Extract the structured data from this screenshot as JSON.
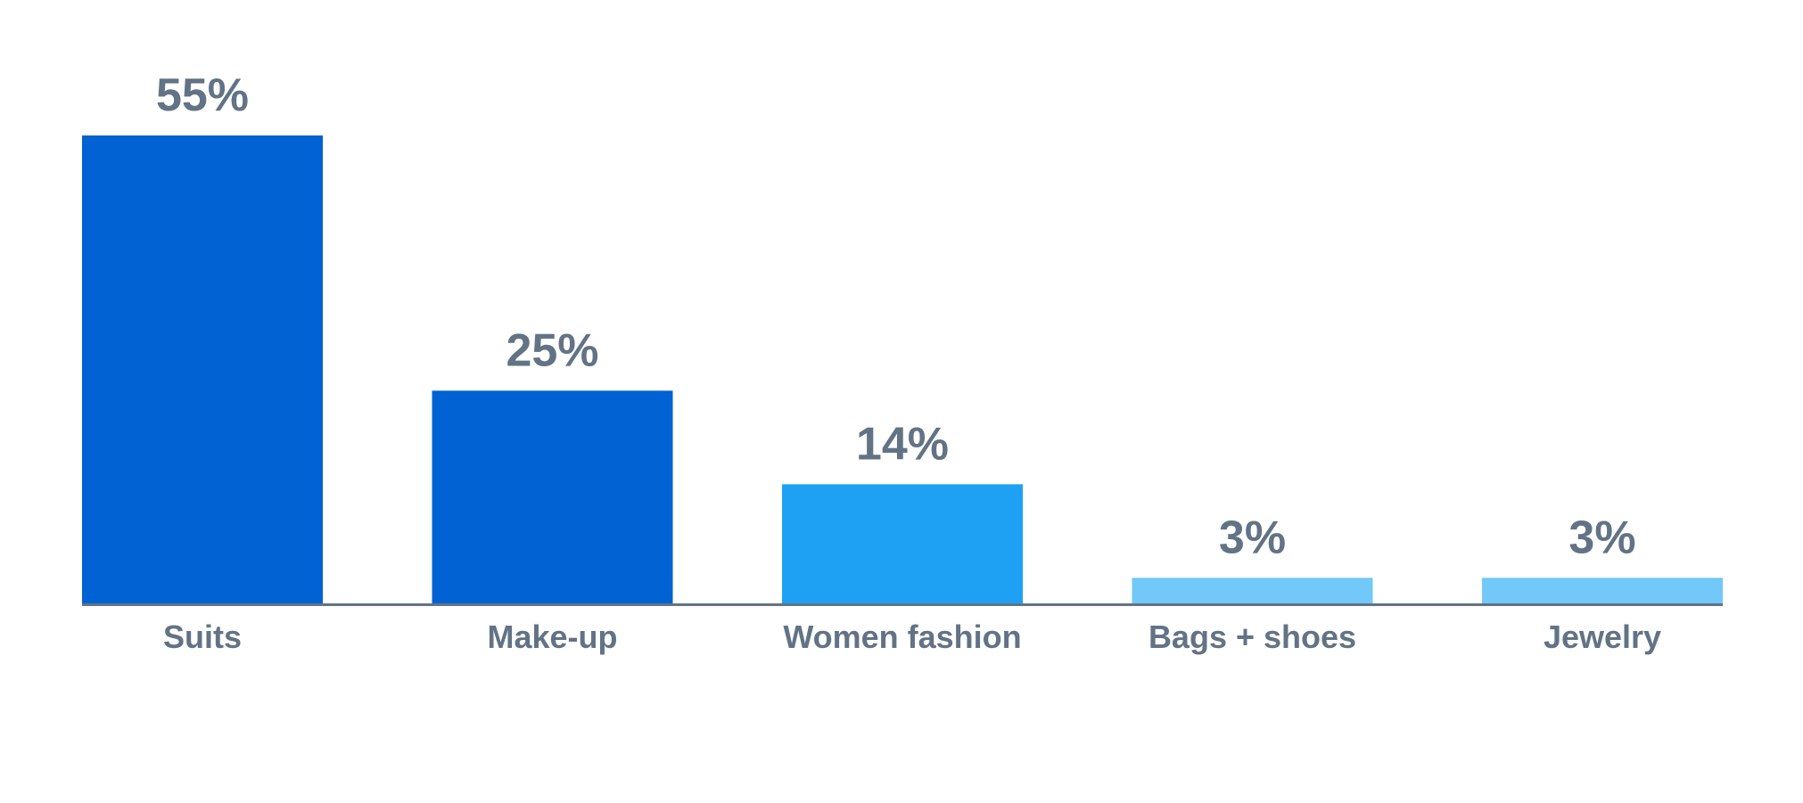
{
  "chart_data": {
    "type": "bar",
    "title": "",
    "xlabel": "",
    "ylabel": "",
    "categories": [
      "Suits",
      "Make-up",
      "Women fashion",
      "Bags + shoes",
      "Jewelry"
    ],
    "values": [
      55,
      25,
      14,
      3,
      3
    ],
    "value_labels": [
      "55%",
      "25%",
      "14%",
      "3%",
      "3%"
    ],
    "ylim": [
      0,
      55
    ],
    "grid": false,
    "legend": "none",
    "bar_colors": [
      "#0062d3",
      "#0062d3",
      "#1ea1f2",
      "#72c8f8",
      "#72c8f8"
    ],
    "label_color": "#627385",
    "axis_color": "#627385"
  }
}
